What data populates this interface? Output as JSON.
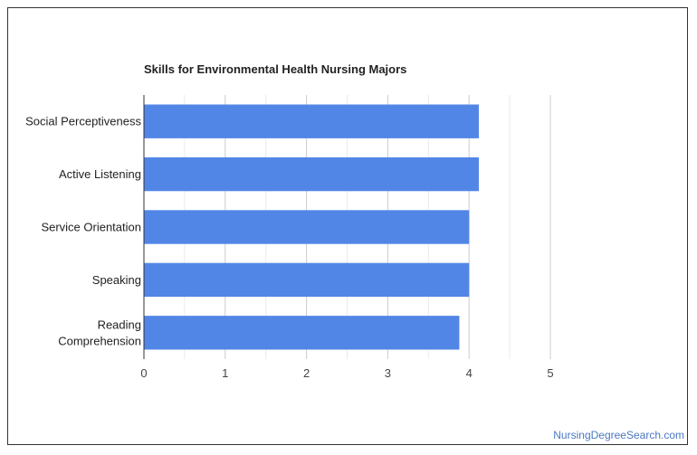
{
  "chart_data": {
    "type": "bar",
    "orientation": "horizontal",
    "title": "Skills for Environmental Health Nursing Majors",
    "categories": [
      "Social Perceptiveness",
      "Active Listening",
      "Service Orientation",
      "Speaking",
      "Reading Comprehension"
    ],
    "category_lines": [
      [
        "Social Perceptiveness"
      ],
      [
        "Active Listening"
      ],
      [
        "Service Orientation"
      ],
      [
        "Speaking"
      ],
      [
        "Reading",
        "Comprehension"
      ]
    ],
    "values": [
      4.12,
      4.12,
      4.0,
      4.0,
      3.88
    ],
    "xlim": [
      0,
      5
    ],
    "xticks": [
      "0",
      "1",
      "2",
      "3",
      "4",
      "5"
    ],
    "grid": true,
    "bar_color": "#5286e6"
  },
  "watermark": "NursingDegreeSearch.com"
}
